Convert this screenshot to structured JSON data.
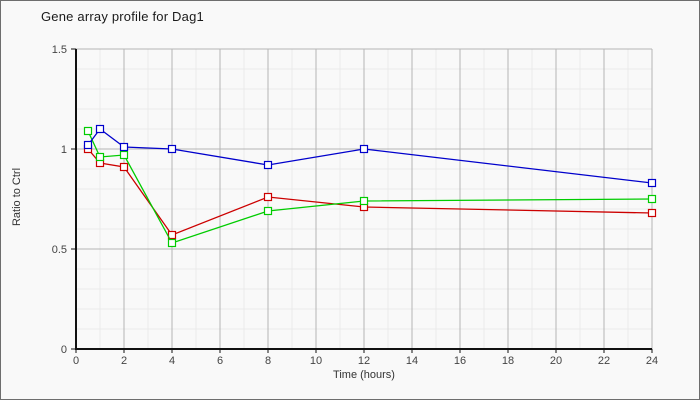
{
  "chart_data": {
    "type": "line",
    "title": "Gene array profile for Dag1",
    "xlabel": "Time (hours)",
    "ylabel": "Ratio to Ctrl",
    "x": [
      0.5,
      1,
      2,
      4,
      8,
      12,
      24
    ],
    "series": [
      {
        "name": "red-series",
        "color": "#cc0000",
        "values": [
          1.0,
          0.93,
          0.91,
          0.57,
          0.76,
          0.71,
          0.68
        ]
      },
      {
        "name": "green-series",
        "color": "#00cc00",
        "values": [
          1.09,
          0.96,
          0.97,
          0.53,
          0.69,
          0.74,
          0.75
        ]
      },
      {
        "name": "blue-series",
        "color": "#0000cc",
        "values": [
          1.02,
          1.1,
          1.01,
          1.0,
          0.92,
          1.0,
          0.83
        ]
      }
    ],
    "xlim": [
      0,
      24
    ],
    "ylim": [
      0,
      1.5
    ],
    "x_major_ticks": [
      0,
      2,
      4,
      6,
      8,
      10,
      12,
      14,
      16,
      18,
      20,
      22,
      24
    ],
    "x_minor_step": 1,
    "y_major_ticks": [
      0,
      0.5,
      1,
      1.5
    ],
    "y_tick_labels": [
      "0",
      "0.5",
      "1",
      "1.5"
    ],
    "y_minor_step": 0.1,
    "grid": true,
    "legend": "none",
    "marker": "open-square",
    "colors": {
      "background": "#f9f9f9",
      "axis": "#111111",
      "major_grid": "#b5b5b5",
      "minor_grid": "#eaeaea",
      "tick_label": "#444444",
      "marker_fill": "#ffffff",
      "frame_border": "#6e6e6e"
    }
  }
}
